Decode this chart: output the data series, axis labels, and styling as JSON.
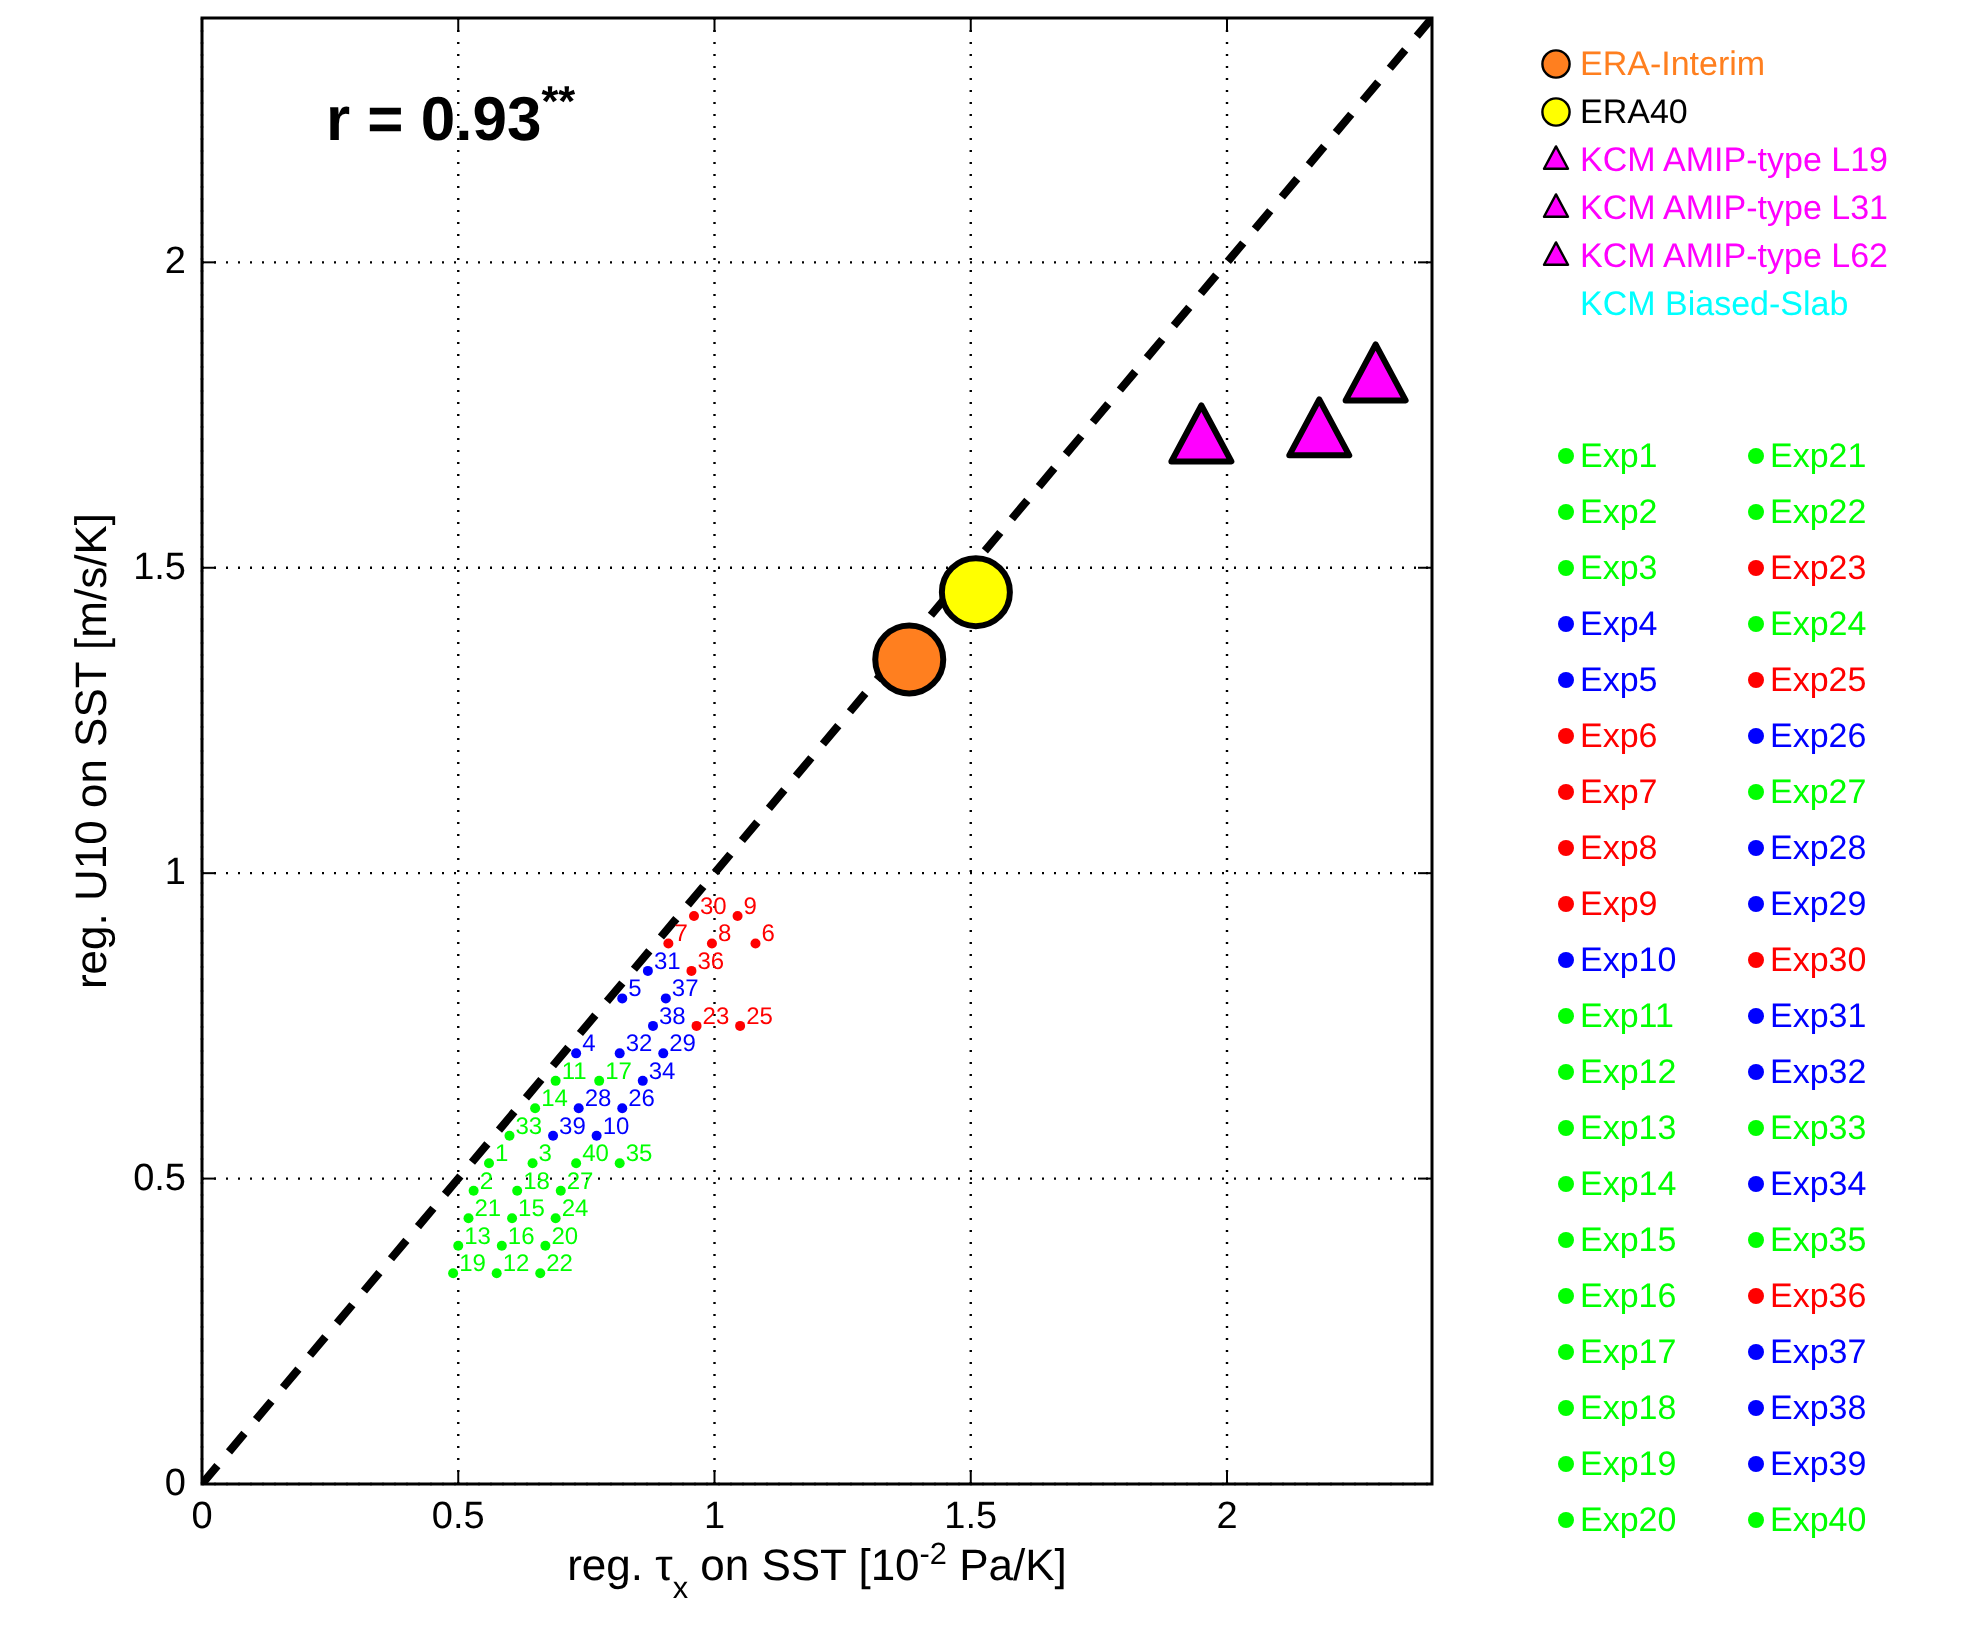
{
  "chart_data": {
    "type": "scatter",
    "xlabel": "reg. τ$_{x}$ on SST [10$^{-2}$ Pa/K]",
    "ylabel": "reg. U10 on SST [m/s/K]",
    "xlim": [
      0,
      2.4
    ],
    "ylim": [
      0,
      2.4
    ],
    "xticks": [
      0,
      0.5,
      1,
      1.5,
      2
    ],
    "yticks": [
      0,
      0.5,
      1,
      1.5,
      2
    ],
    "grid": true,
    "legend": "right",
    "annotations": [
      "r = 0.93$^{**}$",
      {
        "text": "1",
        "x": 0.56,
        "y": 0.525
      },
      {
        "text": "2",
        "x": 0.53,
        "y": 0.48
      },
      {
        "text": "3",
        "x": 0.645,
        "y": 0.525
      },
      {
        "text": "4",
        "x": 0.73,
        "y": 0.705
      },
      {
        "text": "5",
        "x": 0.82,
        "y": 0.795
      },
      {
        "text": "6",
        "x": 1.08,
        "y": 0.885
      },
      {
        "text": "7",
        "x": 0.91,
        "y": 0.885
      },
      {
        "text": "8",
        "x": 0.995,
        "y": 0.885
      },
      {
        "text": "9",
        "x": 1.045,
        "y": 0.93
      },
      {
        "text": "10",
        "x": 0.77,
        "y": 0.57
      },
      {
        "text": "11",
        "x": 0.69,
        "y": 0.66
      },
      {
        "text": "12",
        "x": 0.575,
        "y": 0.345
      },
      {
        "text": "13",
        "x": 0.5,
        "y": 0.39
      },
      {
        "text": "14",
        "x": 0.65,
        "y": 0.615
      },
      {
        "text": "15",
        "x": 0.605,
        "y": 0.435
      },
      {
        "text": "16",
        "x": 0.585,
        "y": 0.39
      },
      {
        "text": "17",
        "x": 0.775,
        "y": 0.66
      },
      {
        "text": "18",
        "x": 0.615,
        "y": 0.48
      },
      {
        "text": "19",
        "x": 0.49,
        "y": 0.345
      },
      {
        "text": "20",
        "x": 0.67,
        "y": 0.39
      },
      {
        "text": "21",
        "x": 0.52,
        "y": 0.435
      },
      {
        "text": "22",
        "x": 0.66,
        "y": 0.345
      },
      {
        "text": "23",
        "x": 0.965,
        "y": 0.75
      },
      {
        "text": "24",
        "x": 0.69,
        "y": 0.435
      },
      {
        "text": "25",
        "x": 1.05,
        "y": 0.75
      },
      {
        "text": "26",
        "x": 0.82,
        "y": 0.615
      },
      {
        "text": "27",
        "x": 0.7,
        "y": 0.48
      },
      {
        "text": "28",
        "x": 0.735,
        "y": 0.615
      },
      {
        "text": "29",
        "x": 0.9,
        "y": 0.705
      },
      {
        "text": "30",
        "x": 0.96,
        "y": 0.93
      },
      {
        "text": "31",
        "x": 0.87,
        "y": 0.84
      },
      {
        "text": "32",
        "x": 0.815,
        "y": 0.705
      },
      {
        "text": "33",
        "x": 0.6,
        "y": 0.57
      },
      {
        "text": "34",
        "x": 0.86,
        "y": 0.66
      },
      {
        "text": "35",
        "x": 0.815,
        "y": 0.525
      },
      {
        "text": "36",
        "x": 0.955,
        "y": 0.84
      },
      {
        "text": "37",
        "x": 0.905,
        "y": 0.795
      },
      {
        "text": "38",
        "x": 0.88,
        "y": 0.75
      },
      {
        "text": "39",
        "x": 0.685,
        "y": 0.57
      },
      {
        "text": "40",
        "x": 0.73,
        "y": 0.525
      }
    ],
    "series": [
      {
        "type": "line",
        "color": "#000000",
        "line_style": "dashed",
        "marker": "none",
        "x": [
          0,
          2.4
        ],
        "values": [
          0,
          2.4
        ]
      },
      {
        "name": "ERA-Interim",
        "color": "#ff7f1f",
        "marker": "circle",
        "x": [
          1.38
        ],
        "values": [
          1.35
        ]
      },
      {
        "name": "ERA40",
        "color": "#ffff00",
        "marker": "circle",
        "x": [
          1.51
        ],
        "values": [
          1.46
        ]
      },
      {
        "name": "KCM AMIP-type L19",
        "color": "#ff00ff",
        "marker": "triangle",
        "x": [
          1.95
        ],
        "values": [
          1.71
        ]
      },
      {
        "name": "KCM AMIP-type L31",
        "color": "#ff00ff",
        "marker": "triangle",
        "x": [
          2.18
        ],
        "values": [
          1.72
        ]
      },
      {
        "name": "KCM AMIP-type L62",
        "color": "#ff00ff",
        "marker": "triangle",
        "x": [
          2.29
        ],
        "values": [
          1.81
        ]
      },
      {
        "name": "KCM Biased-Slab",
        "color": "#00ffff",
        "marker": "none"
      },
      {
        "name": "Exp1",
        "color": "#00ff00",
        "x": [
          0.56
        ],
        "values": [
          0.525
        ]
      },
      {
        "name": "Exp2",
        "color": "#00ff00",
        "x": [
          0.53
        ],
        "values": [
          0.48
        ]
      },
      {
        "name": "Exp3",
        "color": "#00ff00",
        "x": [
          0.645
        ],
        "values": [
          0.525
        ]
      },
      {
        "name": "Exp4",
        "color": "#0000ff",
        "x": [
          0.73
        ],
        "values": [
          0.705
        ]
      },
      {
        "name": "Exp5",
        "color": "#0000ff",
        "x": [
          0.82
        ],
        "values": [
          0.795
        ]
      },
      {
        "name": "Exp6",
        "color": "#ff0000",
        "x": [
          1.08
        ],
        "values": [
          0.885
        ]
      },
      {
        "name": "Exp7",
        "color": "#ff0000",
        "x": [
          0.91
        ],
        "values": [
          0.885
        ]
      },
      {
        "name": "Exp8",
        "color": "#ff0000",
        "x": [
          0.995
        ],
        "values": [
          0.885
        ]
      },
      {
        "name": "Exp9",
        "color": "#ff0000",
        "x": [
          1.045
        ],
        "values": [
          0.93
        ]
      },
      {
        "name": "Exp10",
        "color": "#0000ff",
        "x": [
          0.77
        ],
        "values": [
          0.57
        ]
      },
      {
        "name": "Exp11",
        "color": "#00ff00",
        "x": [
          0.69
        ],
        "values": [
          0.66
        ]
      },
      {
        "name": "Exp12",
        "color": "#00ff00",
        "x": [
          0.575
        ],
        "values": [
          0.345
        ]
      },
      {
        "name": "Exp13",
        "color": "#00ff00",
        "x": [
          0.5
        ],
        "values": [
          0.39
        ]
      },
      {
        "name": "Exp14",
        "color": "#00ff00",
        "x": [
          0.65
        ],
        "values": [
          0.615
        ]
      },
      {
        "name": "Exp15",
        "color": "#00ff00",
        "x": [
          0.605
        ],
        "values": [
          0.435
        ]
      },
      {
        "name": "Exp16",
        "color": "#00ff00",
        "x": [
          0.585
        ],
        "values": [
          0.39
        ]
      },
      {
        "name": "Exp17",
        "color": "#00ff00",
        "x": [
          0.775
        ],
        "values": [
          0.66
        ]
      },
      {
        "name": "Exp18",
        "color": "#00ff00",
        "x": [
          0.615
        ],
        "values": [
          0.48
        ]
      },
      {
        "name": "Exp19",
        "color": "#00ff00",
        "x": [
          0.49
        ],
        "values": [
          0.345
        ]
      },
      {
        "name": "Exp20",
        "color": "#00ff00",
        "x": [
          0.67
        ],
        "values": [
          0.39
        ]
      },
      {
        "name": "Exp21",
        "color": "#00ff00",
        "x": [
          0.52
        ],
        "values": [
          0.435
        ]
      },
      {
        "name": "Exp22",
        "color": "#00ff00",
        "x": [
          0.66
        ],
        "values": [
          0.345
        ]
      },
      {
        "name": "Exp23",
        "color": "#ff0000",
        "x": [
          0.965
        ],
        "values": [
          0.75
        ]
      },
      {
        "name": "Exp24",
        "color": "#00ff00",
        "x": [
          0.69
        ],
        "values": [
          0.435
        ]
      },
      {
        "name": "Exp25",
        "color": "#ff0000",
        "x": [
          1.05
        ],
        "values": [
          0.75
        ]
      },
      {
        "name": "Exp26",
        "color": "#0000ff",
        "x": [
          0.82
        ],
        "values": [
          0.615
        ]
      },
      {
        "name": "Exp27",
        "color": "#00ff00",
        "x": [
          0.7
        ],
        "values": [
          0.48
        ]
      },
      {
        "name": "Exp28",
        "color": "#0000ff",
        "x": [
          0.735
        ],
        "values": [
          0.615
        ]
      },
      {
        "name": "Exp29",
        "color": "#0000ff",
        "x": [
          0.9
        ],
        "values": [
          0.705
        ]
      },
      {
        "name": "Exp30",
        "color": "#ff0000",
        "x": [
          0.96
        ],
        "values": [
          0.93
        ]
      },
      {
        "name": "Exp31",
        "color": "#0000ff",
        "x": [
          0.87
        ],
        "values": [
          0.84
        ]
      },
      {
        "name": "Exp32",
        "color": "#0000ff",
        "x": [
          0.815
        ],
        "values": [
          0.705
        ]
      },
      {
        "name": "Exp33",
        "color": "#00ff00",
        "x": [
          0.6
        ],
        "values": [
          0.57
        ]
      },
      {
        "name": "Exp34",
        "color": "#0000ff",
        "x": [
          0.86
        ],
        "values": [
          0.66
        ]
      },
      {
        "name": "Exp35",
        "color": "#00ff00",
        "x": [
          0.815
        ],
        "values": [
          0.525
        ]
      },
      {
        "name": "Exp36",
        "color": "#ff0000",
        "x": [
          0.955
        ],
        "values": [
          0.84
        ]
      },
      {
        "name": "Exp37",
        "color": "#0000ff",
        "x": [
          0.905
        ],
        "values": [
          0.795
        ]
      },
      {
        "name": "Exp38",
        "color": "#0000ff",
        "x": [
          0.88
        ],
        "values": [
          0.75
        ]
      },
      {
        "name": "Exp39",
        "color": "#0000ff",
        "x": [
          0.685
        ],
        "values": [
          0.57
        ]
      },
      {
        "name": "Exp40",
        "color": "#00ff00",
        "x": [
          0.73
        ],
        "values": [
          0.525
        ]
      }
    ]
  }
}
